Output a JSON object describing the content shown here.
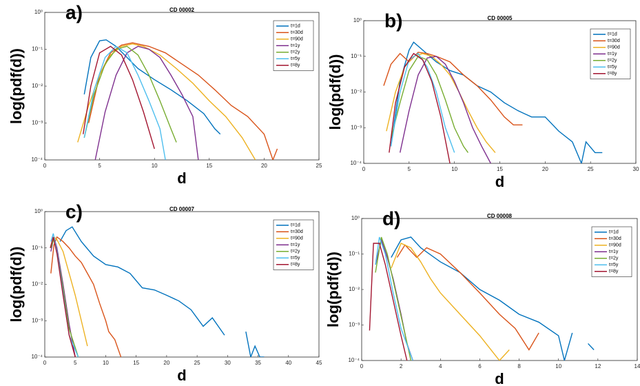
{
  "chart_data": [
    {
      "type": "line",
      "panel_label": "a)",
      "title": "CD 00002",
      "xlabel": "d",
      "ylabel": "log(pdf(d))",
      "log_y": true,
      "legend": "upper right",
      "xlim": [
        0,
        25
      ],
      "xticks": [
        0,
        5,
        10,
        15,
        20,
        25
      ],
      "ylim": [
        0.0001,
        1
      ],
      "yticks": [
        {
          "value": 0.0001,
          "label": "10⁻⁴"
        },
        {
          "value": 0.001,
          "label": "10⁻³"
        },
        {
          "value": 0.01,
          "label": "10⁻²"
        },
        {
          "value": 0.1,
          "label": "10⁻¹"
        },
        {
          "value": 1,
          "label": "10⁰"
        }
      ],
      "series": [
        {
          "name": "t=1d",
          "color": "#0072BD",
          "x": [
            3.6,
            4.2,
            5,
            5.6,
            6.5,
            7.5,
            8.5,
            10,
            11.5,
            13,
            14.5,
            15.5,
            16
          ],
          "values": [
            0.006,
            0.06,
            0.17,
            0.18,
            0.12,
            0.06,
            0.03,
            0.015,
            0.008,
            0.004,
            0.0018,
            0.0007,
            0.0005
          ]
        },
        {
          "name": "t=30d",
          "color": "#D95319",
          "x": [
            4,
            5,
            6,
            7,
            8,
            9.5,
            11,
            12.5,
            14,
            15.5,
            17,
            18.5,
            20,
            20.8,
            21.2
          ],
          "values": [
            0.001,
            0.02,
            0.08,
            0.13,
            0.15,
            0.12,
            0.08,
            0.04,
            0.02,
            0.008,
            0.003,
            0.0015,
            0.0005,
            0.0001,
            0.0002
          ]
        },
        {
          "name": "t=90d",
          "color": "#EDB120",
          "x": [
            3,
            4,
            5,
            6,
            7,
            8,
            9,
            10.5,
            12,
            13.5,
            15,
            16.5,
            18,
            19.2
          ],
          "values": [
            0.0003,
            0.003,
            0.02,
            0.07,
            0.12,
            0.14,
            0.12,
            0.07,
            0.03,
            0.012,
            0.004,
            0.0015,
            0.0004,
            0.0001
          ]
        },
        {
          "name": "t=1y",
          "color": "#7E2F8E",
          "x": [
            4.6,
            5.5,
            6.5,
            7.5,
            8.5,
            9.5,
            10.5,
            11.5,
            12.5,
            13.5,
            14
          ],
          "values": [
            0.0001,
            0.002,
            0.02,
            0.08,
            0.12,
            0.1,
            0.06,
            0.02,
            0.006,
            0.0015,
            0.0001
          ]
        },
        {
          "name": "t=2y",
          "color": "#77AC30",
          "x": [
            3.6,
            4.5,
            5.5,
            6.5,
            7.5,
            8.5,
            9.5,
            10.5,
            11.5,
            12
          ],
          "values": [
            0.0004,
            0.006,
            0.04,
            0.1,
            0.12,
            0.07,
            0.02,
            0.004,
            0.0007,
            0.0003
          ]
        },
        {
          "name": "t=5y",
          "color": "#4DBEEE",
          "x": [
            3.6,
            4.5,
            5.5,
            6.5,
            7.5,
            8.5,
            9.5,
            10.5,
            11
          ],
          "values": [
            0.0004,
            0.008,
            0.06,
            0.12,
            0.08,
            0.02,
            0.004,
            0.0007,
            0.0001
          ]
        },
        {
          "name": "t=8y",
          "color": "#A2142F",
          "x": [
            3.5,
            4.2,
            5,
            6,
            7,
            8,
            9,
            10
          ],
          "values": [
            0.0005,
            0.01,
            0.08,
            0.12,
            0.07,
            0.015,
            0.002,
            0.0002
          ]
        }
      ]
    },
    {
      "type": "line",
      "panel_label": "b)",
      "title": "CD 00005",
      "xlabel": "d",
      "ylabel": "log(pdf(d))",
      "log_y": true,
      "legend": "upper right",
      "xlim": [
        0,
        30
      ],
      "xticks": [
        0,
        5,
        10,
        15,
        20,
        25,
        30
      ],
      "ylim": [
        0.0001,
        1
      ],
      "yticks": [
        {
          "value": 0.0001,
          "label": "10⁻⁴"
        },
        {
          "value": 0.001,
          "label": "10⁻³"
        },
        {
          "value": 0.01,
          "label": "10⁻²"
        },
        {
          "value": 0.1,
          "label": "10⁻¹"
        },
        {
          "value": 1,
          "label": "10⁰"
        }
      ],
      "series": [
        {
          "name": "t=1d",
          "color": "#0072BD",
          "x": [
            3,
            4,
            5,
            5.5,
            6.5,
            8,
            9.5,
            11,
            12.5,
            14,
            15.5,
            17,
            18.5,
            20,
            21.5,
            23,
            24,
            24.5,
            25.5,
            26.3
          ],
          "values": [
            0.0003,
            0.02,
            0.15,
            0.25,
            0.15,
            0.07,
            0.04,
            0.03,
            0.015,
            0.01,
            0.005,
            0.003,
            0.002,
            0.002,
            0.0008,
            0.0004,
            0.0001,
            0.0004,
            0.0002,
            0.0002
          ]
        },
        {
          "name": "t=30d",
          "color": "#D95319",
          "x": [
            2.2,
            3,
            4,
            5,
            6,
            7,
            8,
            9.5,
            11,
            12.5,
            14,
            15.5,
            16.5,
            17.5
          ],
          "values": [
            0.015,
            0.06,
            0.12,
            0.07,
            0.13,
            0.12,
            0.1,
            0.07,
            0.03,
            0.015,
            0.006,
            0.002,
            0.0012,
            0.0012
          ]
        },
        {
          "name": "t=90d",
          "color": "#EDB120",
          "x": [
            2.5,
            3.5,
            4.5,
            5.5,
            6.5,
            7.5,
            8.5,
            9.5,
            10.5,
            11.5,
            12.5,
            13.5,
            14.5
          ],
          "values": [
            0.0008,
            0.01,
            0.05,
            0.1,
            0.12,
            0.1,
            0.06,
            0.03,
            0.01,
            0.003,
            0.001,
            0.0004,
            0.0002
          ]
        },
        {
          "name": "t=1y",
          "color": "#7E2F8E",
          "x": [
            4,
            5,
            6,
            7,
            8,
            9,
            10,
            11,
            12,
            13,
            14
          ],
          "values": [
            0.0002,
            0.003,
            0.03,
            0.09,
            0.1,
            0.06,
            0.02,
            0.005,
            0.001,
            0.0003,
            0.0001
          ]
        },
        {
          "name": "t=2y",
          "color": "#77AC30",
          "x": [
            3,
            4,
            5,
            6,
            7,
            8,
            9,
            10,
            11,
            11.5
          ],
          "values": [
            0.0005,
            0.005,
            0.04,
            0.1,
            0.08,
            0.03,
            0.006,
            0.001,
            0.0003,
            0.0002
          ]
        },
        {
          "name": "t=5y",
          "color": "#4DBEEE",
          "x": [
            3,
            4,
            5,
            6,
            7,
            8,
            9,
            10
          ],
          "values": [
            0.0003,
            0.01,
            0.08,
            0.12,
            0.05,
            0.01,
            0.001,
            0.0002
          ]
        },
        {
          "name": "t=8y",
          "color": "#A2142F",
          "x": [
            2.8,
            3.5,
            4.5,
            5.5,
            6.5,
            7.5,
            8.5,
            9.5
          ],
          "values": [
            0.0002,
            0.005,
            0.05,
            0.12,
            0.08,
            0.02,
            0.002,
            0.0001
          ]
        }
      ]
    },
    {
      "type": "line",
      "panel_label": "c)",
      "title": "CD 00007",
      "xlabel": "d",
      "ylabel": "log(pdf(d))",
      "log_y": true,
      "legend": "upper right",
      "xlim": [
        0,
        45
      ],
      "xticks": [
        0,
        5,
        10,
        15,
        20,
        25,
        30,
        35,
        40,
        45
      ],
      "ylim": [
        0.0001,
        1
      ],
      "yticks": [
        {
          "value": 0.0001,
          "label": "10⁻⁴"
        },
        {
          "value": 0.001,
          "label": "10⁻³"
        },
        {
          "value": 0.01,
          "label": "10⁻²"
        },
        {
          "value": 0.1,
          "label": "10⁻¹"
        },
        {
          "value": 1,
          "label": "10⁰"
        }
      ],
      "series": [
        {
          "name": "t=1d",
          "color": "#0072BD",
          "x": [
            2.5,
            3.5,
            4.5,
            6,
            8,
            10,
            12,
            14,
            16,
            18,
            20,
            22,
            24,
            26,
            27.5,
            29.5,
            31,
            33,
            33.8,
            34.5,
            35.3,
            36
          ],
          "values": [
            0.15,
            0.3,
            0.38,
            0.15,
            0.06,
            0.035,
            0.03,
            0.02,
            0.008,
            0.007,
            0.005,
            0.0035,
            0.002,
            0.0007,
            0.0012,
            0.0004,
            null,
            0.0005,
            0.0001,
            0.0002,
            0.0001,
            0.0001
          ]
        },
        {
          "name": "t=30d",
          "color": "#D95319",
          "x": [
            1,
            1.5,
            2,
            3,
            4,
            5,
            6,
            7,
            8,
            9,
            10,
            10.5,
            11.5,
            12.5
          ],
          "values": [
            0.02,
            0.12,
            0.2,
            0.15,
            0.1,
            0.06,
            0.04,
            0.02,
            0.01,
            0.003,
            0.001,
            0.0005,
            0.0003,
            0.0001
          ]
        },
        {
          "name": "t=90d",
          "color": "#EDB120",
          "x": [
            1,
            1.5,
            2,
            3,
            4,
            5,
            6,
            7
          ],
          "values": [
            0.1,
            0.2,
            0.17,
            0.08,
            0.02,
            0.005,
            0.001,
            0.0002
          ]
        },
        {
          "name": "t=1y",
          "color": "#7E2F8E",
          "x": [
            1,
            1.5,
            2,
            3,
            4,
            5
          ],
          "values": [
            0.08,
            0.2,
            0.1,
            0.01,
            0.0008,
            0.0001
          ]
        },
        {
          "name": "t=2y",
          "color": "#77AC30",
          "x": [
            1,
            1.5,
            2,
            3,
            4,
            5.5
          ],
          "values": [
            0.1,
            0.18,
            0.08,
            0.008,
            0.0006,
            0.0001
          ]
        },
        {
          "name": "t=5y",
          "color": "#4DBEEE",
          "x": [
            1,
            1.4,
            2,
            3,
            4,
            5.5
          ],
          "values": [
            0.15,
            0.25,
            0.08,
            0.006,
            0.0004,
            0.0001
          ]
        },
        {
          "name": "t=8y",
          "color": "#A2142F",
          "x": [
            0.9,
            1.4,
            2,
            3,
            4,
            5
          ],
          "values": [
            0.1,
            0.2,
            0.07,
            0.005,
            0.0004,
            0.0001
          ]
        }
      ]
    },
    {
      "type": "line",
      "panel_label": "d)",
      "title": "CD 00008",
      "xlabel": "d",
      "ylabel": "log(pdf(d))",
      "log_y": true,
      "legend": "upper right",
      "xlim": [
        0,
        14
      ],
      "xticks": [
        0,
        2,
        4,
        6,
        8,
        10,
        12,
        14
      ],
      "ylim": [
        0.0001,
        1
      ],
      "yticks": [
        {
          "value": 0.0001,
          "label": "10⁻⁴"
        },
        {
          "value": 0.001,
          "label": "10⁻³"
        },
        {
          "value": 0.01,
          "label": "10⁻²"
        },
        {
          "value": 0.1,
          "label": "10⁻¹"
        },
        {
          "value": 1,
          "label": "10⁰"
        }
      ],
      "series": [
        {
          "name": "t=1d",
          "color": "#0072BD",
          "x": [
            1.5,
            2,
            2.5,
            3,
            4,
            5,
            6,
            7,
            8,
            9,
            10,
            10.3,
            10.7,
            11.2,
            11.5,
            11.8
          ],
          "values": [
            0.08,
            0.25,
            0.3,
            0.15,
            0.06,
            0.03,
            0.01,
            0.005,
            0.002,
            0.0012,
            0.0005,
            0.0001,
            0.0006,
            null,
            0.0003,
            0.0002
          ]
        },
        {
          "name": "t=30d",
          "color": "#D95319",
          "x": [
            1.8,
            2.2,
            2.8,
            3.3,
            4,
            5,
            6,
            7,
            7.8,
            8.5,
            9
          ],
          "values": [
            0.08,
            0.18,
            0.08,
            0.15,
            0.1,
            0.03,
            0.008,
            0.002,
            0.0008,
            0.0002,
            0.0006
          ]
        },
        {
          "name": "t=90d",
          "color": "#EDB120",
          "x": [
            1.5,
            2,
            2.5,
            3,
            3.5,
            4,
            5,
            6,
            7,
            7.5
          ],
          "values": [
            0.04,
            0.2,
            0.15,
            0.06,
            0.02,
            0.008,
            0.002,
            0.0005,
            0.0001,
            0.0002
          ]
        },
        {
          "name": "t=1y",
          "color": "#7E2F8E",
          "x": [
            0.7,
            1,
            1.3,
            1.6,
            2,
            2.3,
            2.6
          ],
          "values": [
            0.05,
            0.25,
            0.08,
            0.02,
            0.002,
            0.0003,
            0.0001
          ]
        },
        {
          "name": "t=2y",
          "color": "#77AC30",
          "x": [
            0.7,
            1,
            1.3,
            1.7,
            2.1,
            2.5
          ],
          "values": [
            0.03,
            0.3,
            0.1,
            0.01,
            0.001,
            0.0001
          ]
        },
        {
          "name": "t=5y",
          "color": "#4DBEEE",
          "x": [
            0.7,
            0.9,
            1.2,
            1.6,
            2,
            2.6
          ],
          "values": [
            0.05,
            0.3,
            0.1,
            0.008,
            0.0008,
            0.0001
          ]
        },
        {
          "name": "t=8y",
          "color": "#A2142F",
          "x": [
            0.4,
            0.6,
            0.9,
            1.2,
            1.6,
            2,
            2.3
          ],
          "values": [
            0.0007,
            0.2,
            0.2,
            0.05,
            0.005,
            0.0005,
            0.0001
          ]
        }
      ]
    }
  ]
}
